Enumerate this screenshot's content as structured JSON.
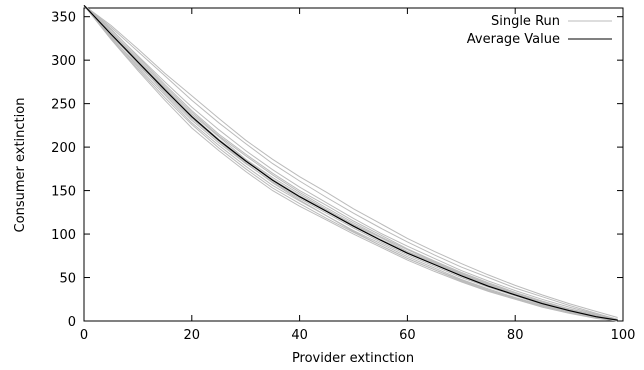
{
  "chart_data": {
    "type": "line",
    "title": "",
    "xlabel": "Provider extinction",
    "ylabel": "Consumer extinction",
    "xlim": [
      0,
      100
    ],
    "ylim": [
      0,
      360
    ],
    "xticks": [
      0,
      20,
      40,
      60,
      80,
      100
    ],
    "yticks": [
      0,
      50,
      100,
      150,
      200,
      250,
      300,
      350
    ],
    "grid": false,
    "legend_position": "top-right",
    "x": [
      0,
      5,
      10,
      15,
      20,
      25,
      30,
      35,
      40,
      45,
      50,
      55,
      60,
      65,
      70,
      75,
      80,
      85,
      90,
      95,
      99
    ],
    "series": [
      {
        "name": "Average Value",
        "color": "#000000",
        "values": [
          363,
          330,
          298,
          266,
          235,
          208,
          184,
          162,
          143,
          126,
          109,
          93,
          78,
          65,
          52,
          40,
          30,
          20,
          12,
          5,
          1
        ]
      }
    ],
    "single_runs": {
      "name": "Single Run",
      "color": "#bbbbbb",
      "values": [
        [
          363,
          335,
          305,
          275,
          246,
          220,
          196,
          174,
          154,
          136,
          118,
          101,
          86,
          72,
          58,
          46,
          35,
          25,
          16,
          8,
          2
        ],
        [
          363,
          327,
          292,
          260,
          228,
          202,
          178,
          156,
          138,
          121,
          104,
          89,
          74,
          61,
          48,
          37,
          27,
          18,
          10,
          4,
          1
        ],
        [
          363,
          338,
          310,
          282,
          254,
          228,
          204,
          181,
          161,
          142,
          124,
          107,
          91,
          76,
          62,
          50,
          38,
          28,
          18,
          9,
          2
        ],
        [
          363,
          324,
          288,
          254,
          222,
          196,
          172,
          150,
          132,
          116,
          100,
          85,
          70,
          57,
          45,
          34,
          25,
          16,
          9,
          3,
          0
        ],
        [
          363,
          332,
          300,
          268,
          238,
          212,
          186,
          165,
          146,
          128,
          111,
          96,
          80,
          67,
          54,
          42,
          31,
          21,
          13,
          6,
          1
        ],
        [
          363,
          329,
          296,
          262,
          231,
          205,
          181,
          160,
          141,
          124,
          107,
          91,
          76,
          63,
          50,
          39,
          29,
          19,
          11,
          5,
          0
        ],
        [
          363,
          340,
          313,
          285,
          259,
          233,
          208,
          186,
          166,
          148,
          129,
          112,
          95,
          80,
          66,
          53,
          41,
          30,
          20,
          11,
          4
        ],
        [
          363,
          326,
          294,
          264,
          233,
          207,
          182,
          159,
          139,
          121,
          103,
          87,
          72,
          59,
          46,
          35,
          26,
          17,
          10,
          4,
          1
        ],
        [
          363,
          333,
          302,
          270,
          240,
          213,
          190,
          168,
          148,
          130,
          113,
          97,
          82,
          68,
          55,
          43,
          32,
          22,
          14,
          6,
          2
        ],
        [
          363,
          328,
          297,
          265,
          236,
          209,
          185,
          163,
          144,
          127,
          110,
          94,
          79,
          66,
          53,
          41,
          31,
          21,
          13,
          6,
          1
        ],
        [
          363,
          336,
          304,
          272,
          242,
          215,
          192,
          170,
          150,
          133,
          115,
          99,
          83,
          69,
          56,
          44,
          33,
          23,
          14,
          7,
          1
        ],
        [
          363,
          325,
          290,
          257,
          226,
          199,
          175,
          153,
          135,
          118,
          102,
          87,
          72,
          59,
          47,
          36,
          26,
          17,
          10,
          4,
          0
        ]
      ]
    }
  }
}
